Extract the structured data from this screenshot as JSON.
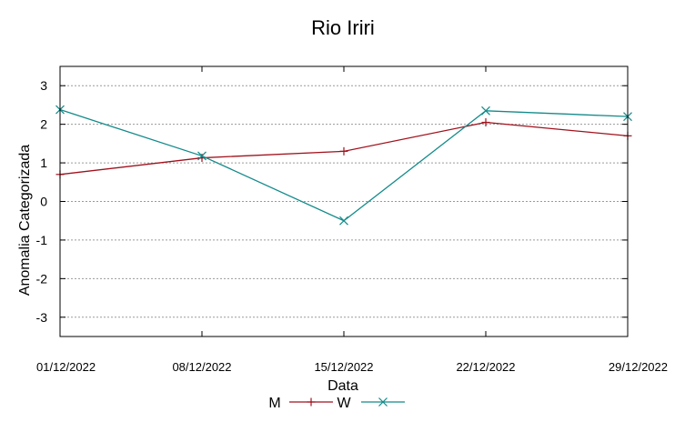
{
  "chart_data": {
    "type": "line",
    "title": "Rio Iriri",
    "xlabel": "Data",
    "ylabel": "Anomalia Categorizada",
    "categories": [
      "01/12/2022",
      "08/12/2022",
      "15/12/2022",
      "22/12/2022",
      "29/12/2022"
    ],
    "yticks": [
      "3",
      "2",
      "1",
      "0",
      "-1",
      "-2",
      "-3"
    ],
    "ylim": [
      -3.5,
      3.5
    ],
    "grid": true,
    "legend_position": "bottom-center",
    "series": [
      {
        "name": "M",
        "color": "#a0111c",
        "marker": "plus",
        "values": [
          0.7,
          1.13,
          1.3,
          2.05,
          1.7
        ]
      },
      {
        "name": "W",
        "color": "#138a8a",
        "marker": "cross",
        "values": [
          2.38,
          1.18,
          -0.5,
          2.35,
          2.2
        ]
      }
    ]
  }
}
